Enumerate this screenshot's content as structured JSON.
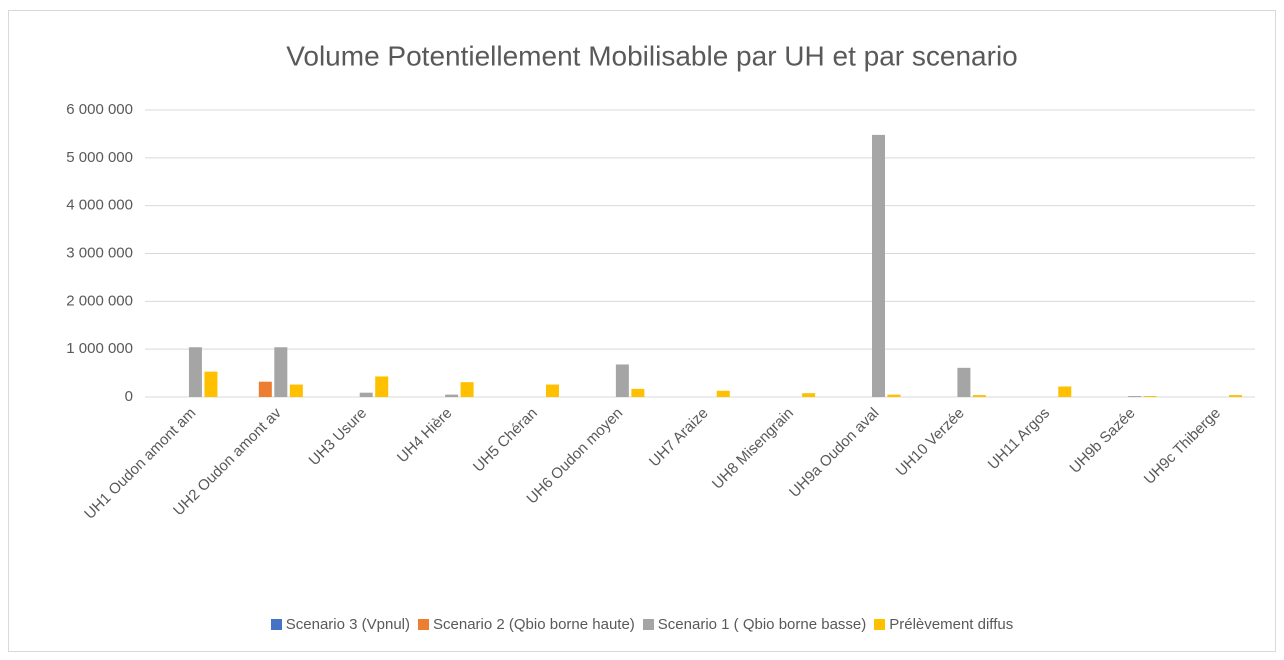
{
  "chart_data": {
    "type": "bar",
    "title": "Volume Potentiellement Mobilisable par UH et par scenario",
    "categories": [
      "UH1 Oudon amont am",
      "UH2 Oudon amont av",
      "UH3 Usure",
      "UH4 Hière",
      "UH5 Chéran",
      "UH6 Oudon moyen",
      "UH7 Araize",
      "UH8 Misengrain",
      "UH9a Oudon aval",
      "UH10 Verzée",
      "UH11 Argos",
      "UH9b Sazée",
      "UH9c Thiberge"
    ],
    "series": [
      {
        "name": "Scenario 3 (Vpnul)",
        "color": "#4472c4",
        "values": [
          0,
          0,
          0,
          0,
          0,
          0,
          0,
          0,
          0,
          0,
          0,
          0,
          0
        ]
      },
      {
        "name": "Scenario 2 (Qbio borne haute)",
        "color": "#ed7d31",
        "values": [
          0,
          320000,
          0,
          0,
          0,
          0,
          0,
          0,
          0,
          0,
          0,
          0,
          0
        ]
      },
      {
        "name": "Scenario 1 ( Qbio borne basse)",
        "color": "#a5a5a5",
        "values": [
          1040000,
          1040000,
          90000,
          50000,
          0,
          680000,
          0,
          0,
          5480000,
          610000,
          0,
          20000,
          0
        ]
      },
      {
        "name": "Prélèvement diffus",
        "color": "#ffc000",
        "values": [
          530000,
          260000,
          430000,
          310000,
          260000,
          170000,
          130000,
          80000,
          50000,
          40000,
          220000,
          20000,
          40000
        ]
      }
    ],
    "ylim": [
      0,
      6000000
    ],
    "yticks": [
      0,
      {
        "value": 1000000,
        "label": "1 000 000"
      },
      {
        "value": 2000000,
        "label": "2 000 000"
      },
      {
        "value": 3000000,
        "label": "3 000 000"
      },
      {
        "value": 4000000,
        "label": "4 000 000"
      },
      {
        "value": 5000000,
        "label": "5 000 000"
      },
      {
        "value": 6000000,
        "label": "6 000 000"
      }
    ],
    "grid": true,
    "legend": "bottom"
  }
}
